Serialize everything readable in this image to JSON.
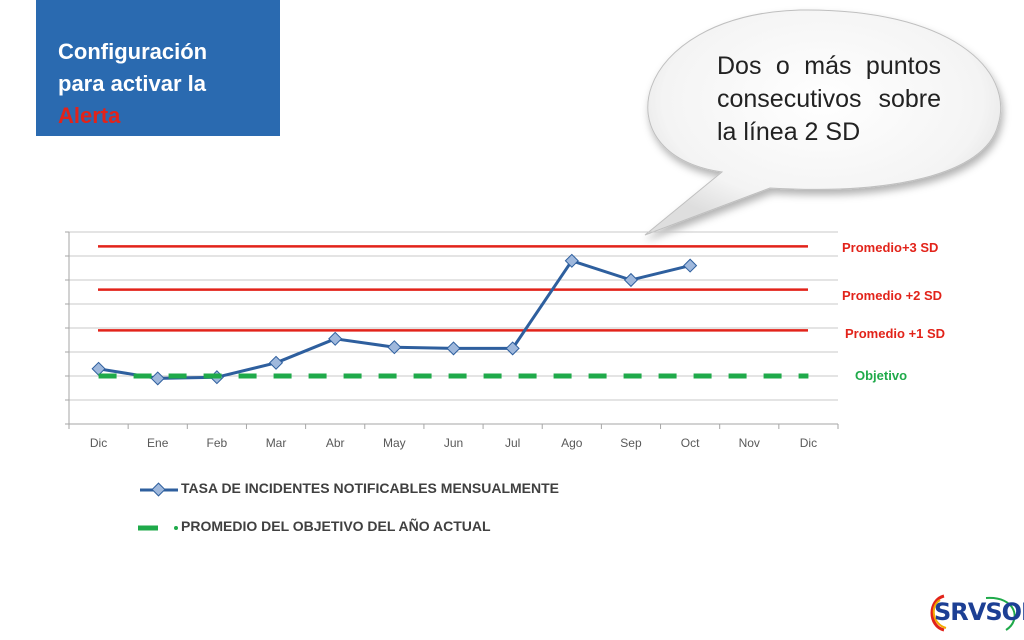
{
  "header": {
    "title_line1": "Configuración",
    "title_line2": "para activar la",
    "title_alert": "Alerta"
  },
  "callout": {
    "text": "Dos o más puntos consecutivos sobre la línea 2 SD"
  },
  "chart_data": {
    "type": "line",
    "categories": [
      "Dic",
      "Ene",
      "Feb",
      "Mar",
      "Abr",
      "May",
      "Jun",
      "Jul",
      "Ago",
      "Sep",
      "Oct",
      "Nov",
      "Dic"
    ],
    "ylim": [
      0,
      8
    ],
    "grid": true,
    "series": [
      {
        "name": "TASA DE INCIDENTES NOTIFICABLES MENSUALMENTE",
        "color": "#2e5f9e",
        "values": [
          2.3,
          1.9,
          1.95,
          2.55,
          3.55,
          3.2,
          3.15,
          3.15,
          6.8,
          6.0,
          6.6,
          null,
          null
        ]
      },
      {
        "name": "PROMEDIO DEL OBJETIVO DEL AÑO ACTUAL",
        "color": "#1faa4a",
        "dashed": true,
        "values": [
          2.0,
          2.0,
          2.0,
          2.0,
          2.0,
          2.0,
          2.0,
          2.0,
          2.0,
          2.0,
          2.0,
          2.0,
          2.0
        ]
      }
    ],
    "reference_lines": [
      {
        "label": "Promedio+3 SD",
        "value": 7.4,
        "color": "#e2231a"
      },
      {
        "label": "Promedio +2 SD",
        "value": 5.6,
        "color": "#e2231a"
      },
      {
        "label": "Promedio +1 SD",
        "value": 3.9,
        "color": "#e2231a"
      },
      {
        "label": "Objetivo",
        "value": 2.0,
        "color": "#1faa4a"
      }
    ],
    "legend_position": "bottom-left"
  },
  "logo": {
    "text": "SRVSOP"
  }
}
